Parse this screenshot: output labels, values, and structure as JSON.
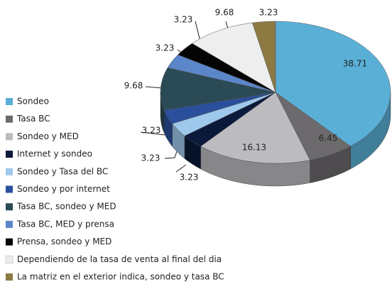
{
  "chart_data": {
    "type": "pie3d",
    "categories": [
      "Sondeo",
      "Tasa BC",
      "Sondeo y MED",
      "Internet y sondeo",
      "Sondeo y Tasa del BC",
      "Sondeo y por internet",
      "Tasa BC, sondeo y MED",
      "Tasa BC, MED y prensa",
      "Prensa, sondeo y MED",
      "Dependiendo de la tasa de venta al final del dia",
      "La matriz en el exterior indica, sondeo y tasa BC"
    ],
    "values": [
      38.71,
      6.45,
      16.13,
      3.23,
      3.23,
      3.23,
      9.68,
      3.23,
      3.23,
      9.68,
      3.23
    ],
    "colors": [
      "#5aafd6",
      "#6d6a6e",
      "#bcbbbf",
      "#0b1a3a",
      "#9ec8ec",
      "#2a4f9c",
      "#2a4a55",
      "#5b86c9",
      "#050505",
      "#eeeeee",
      "#8c7a43"
    ],
    "legend": "left"
  }
}
